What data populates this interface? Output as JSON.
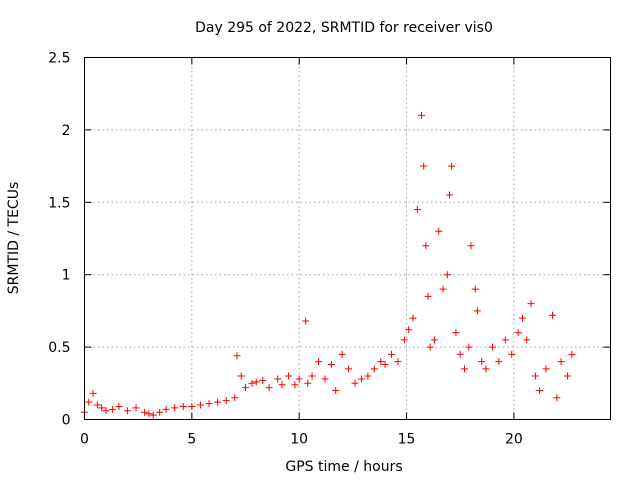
{
  "chart_data": {
    "type": "scatter",
    "title": "Day 295 of 2022, SRMTID for receiver vis0",
    "xlabel": "GPS time / hours",
    "ylabel": "SRMTID / TECUs",
    "xlim": [
      0,
      24.5
    ],
    "ylim": [
      0,
      2.5
    ],
    "x_ticks": [
      0,
      5,
      10,
      15,
      20
    ],
    "x_tick_labels": [
      "0",
      "5",
      "10",
      "15",
      "20"
    ],
    "y_ticks": [
      0,
      0.5,
      1,
      1.5,
      2,
      2.5
    ],
    "y_tick_labels": [
      "0",
      "0.5",
      "1",
      "1.5",
      "2",
      "2.5"
    ],
    "grid": true,
    "marker": "+",
    "colors": {
      "series": "#ff0000",
      "axes": "#000000",
      "grid": "#a0a0a0"
    },
    "series": [
      {
        "name": "SRMTID",
        "x": [
          0.0,
          0.2,
          0.4,
          0.6,
          0.8,
          1.0,
          1.3,
          1.6,
          2.0,
          2.4,
          2.8,
          3.0,
          3.2,
          3.5,
          3.8,
          4.2,
          4.6,
          5.0,
          5.4,
          5.8,
          6.2,
          6.6,
          7.0,
          7.1,
          7.3,
          7.5,
          7.8,
          8.0,
          8.3,
          8.6,
          9.0,
          9.2,
          9.5,
          9.8,
          10.0,
          10.3,
          10.4,
          10.6,
          10.9,
          11.2,
          11.5,
          11.7,
          12.0,
          12.3,
          12.6,
          12.9,
          13.2,
          13.5,
          13.8,
          14.0,
          14.3,
          14.6,
          14.9,
          15.1,
          15.3,
          15.5,
          15.7,
          15.8,
          15.9,
          16.0,
          16.1,
          16.3,
          16.5,
          16.7,
          16.9,
          17.0,
          17.1,
          17.3,
          17.5,
          17.7,
          17.9,
          18.0,
          18.2,
          18.3,
          18.5,
          18.7,
          19.0,
          19.3,
          19.6,
          19.9,
          20.2,
          20.4,
          20.6,
          20.8,
          21.0,
          21.2,
          21.5,
          21.8,
          22.0,
          22.2,
          22.5,
          22.7
        ],
        "y": [
          0.05,
          0.12,
          0.18,
          0.1,
          0.08,
          0.06,
          0.07,
          0.09,
          0.06,
          0.08,
          0.05,
          0.04,
          0.03,
          0.05,
          0.07,
          0.08,
          0.09,
          0.09,
          0.1,
          0.11,
          0.12,
          0.13,
          0.15,
          0.44,
          0.3,
          0.22,
          0.25,
          0.26,
          0.27,
          0.22,
          0.28,
          0.24,
          0.3,
          0.24,
          0.28,
          0.68,
          0.25,
          0.3,
          0.4,
          0.28,
          0.38,
          0.2,
          0.45,
          0.35,
          0.25,
          0.28,
          0.3,
          0.35,
          0.4,
          0.38,
          0.45,
          0.4,
          0.55,
          0.62,
          0.7,
          1.45,
          2.1,
          1.75,
          1.2,
          0.85,
          0.5,
          0.55,
          1.3,
          0.9,
          1.0,
          1.55,
          1.75,
          0.6,
          0.45,
          0.35,
          0.5,
          1.2,
          0.9,
          0.75,
          0.4,
          0.35,
          0.5,
          0.4,
          0.55,
          0.45,
          0.6,
          0.7,
          0.55,
          0.8,
          0.3,
          0.2,
          0.35,
          0.72,
          0.15,
          0.4,
          0.3,
          0.45
        ]
      }
    ]
  }
}
